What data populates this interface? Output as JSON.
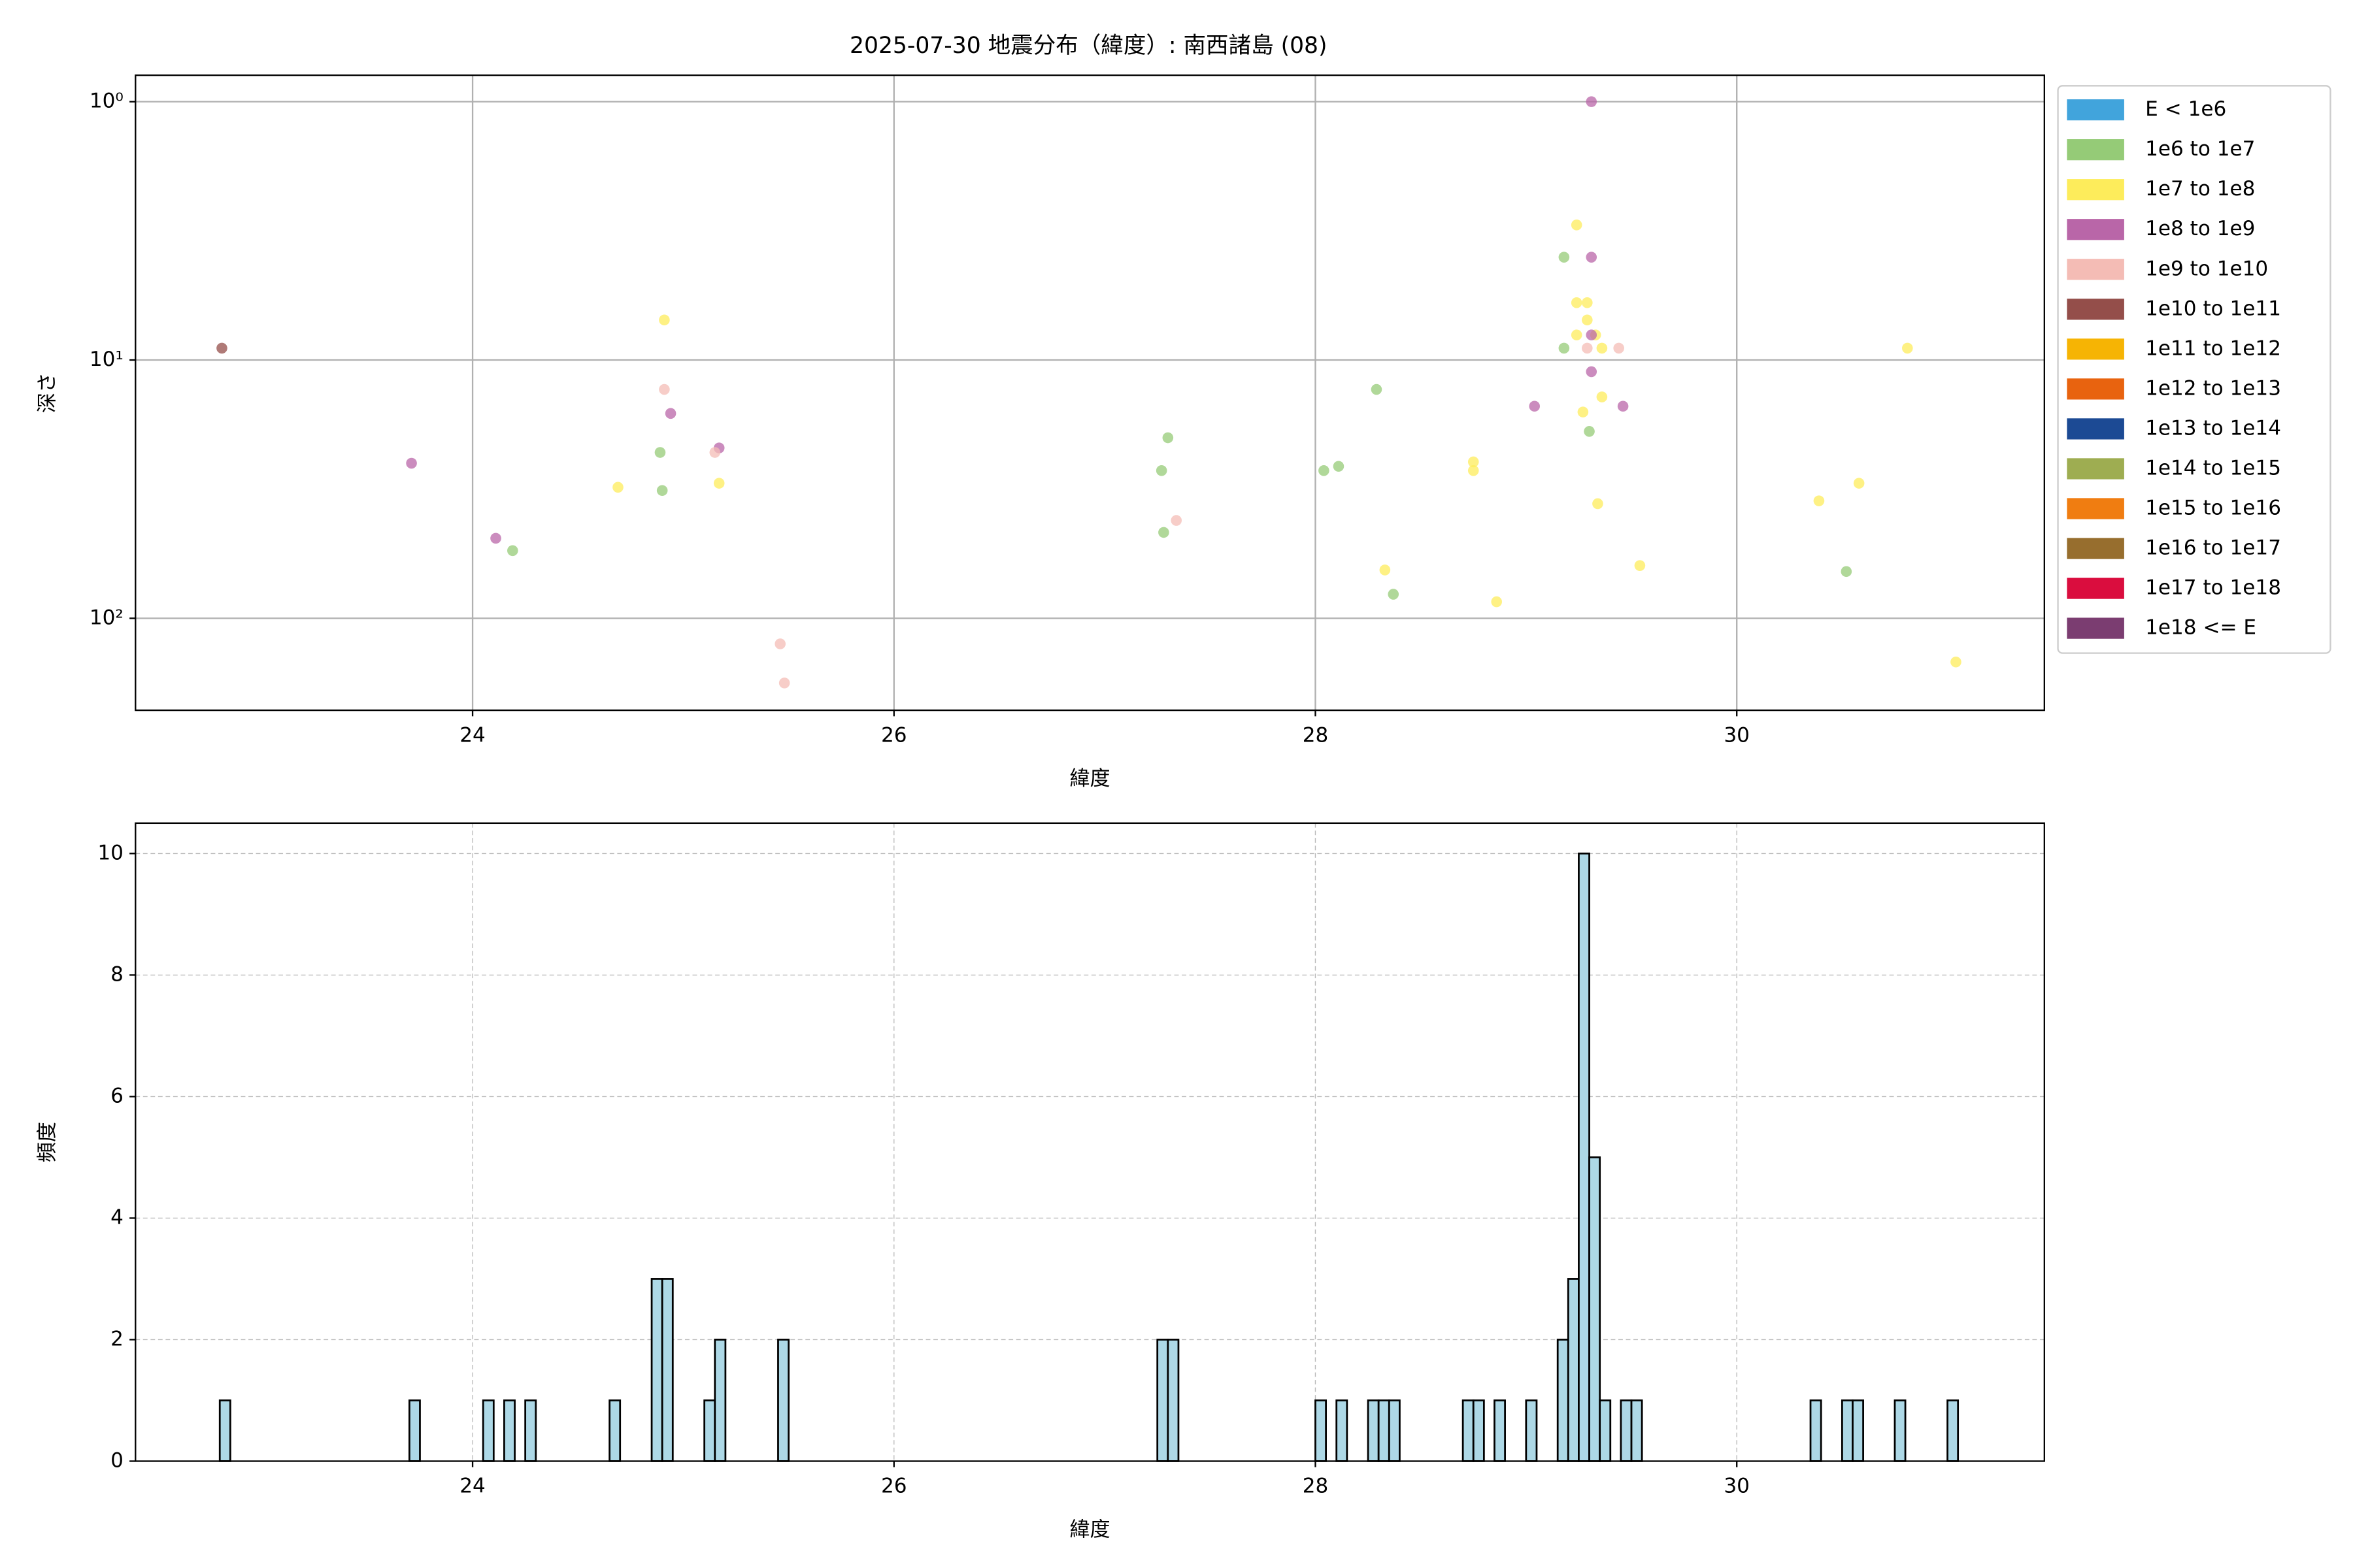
{
  "chart_data": [
    {
      "type": "scatter",
      "title": "2025-07-30 地震分布（緯度）: 南西諸島 (08)",
      "xlabel": "緯度",
      "ylabel": "深さ",
      "xlim": [
        22.4,
        31.46
      ],
      "ylim": [
        227,
        0.79
      ],
      "log_y": true,
      "xticks": [
        24,
        26,
        28,
        30
      ],
      "yticks": [
        {
          "value": 1,
          "label": "10⁰"
        },
        {
          "value": 10,
          "label": "10¹"
        },
        {
          "value": 100,
          "label": "10²"
        }
      ],
      "grid": true,
      "legend": "outside-right",
      "series": [
        {
          "name": "E < 1e6",
          "color": "#41a4dc",
          "x": [],
          "values": []
        },
        {
          "name": "1e6 to 1e7",
          "color": "#95cb77",
          "x": [
            24.19,
            24.89,
            24.9,
            27.3,
            27.27,
            27.28,
            28.04,
            28.11,
            28.29,
            28.37,
            29.18,
            29.18,
            29.3,
            30.52
          ],
          "values": [
            54.7,
            22.8,
            32,
            20,
            26.8,
            46.5,
            26.8,
            25.8,
            13,
            80.7,
            4,
            9,
            18.9,
            65.9
          ]
        },
        {
          "name": "1e7 to 1e8",
          "color": "#fdec5b",
          "x": [
            24.91,
            24.69,
            25.17,
            29.24,
            29.24,
            29.29,
            29.29,
            29.24,
            29.33,
            29.36,
            29.27,
            29.36,
            29.34,
            28.75,
            28.75,
            28.33,
            28.86,
            29.54,
            30.39,
            30.58,
            30.81,
            31.04
          ],
          "values": [
            7,
            31.1,
            30,
            3,
            6,
            6,
            7,
            8,
            8,
            9,
            15.9,
            13.9,
            36,
            24.8,
            26.8,
            65,
            86.3,
            62.5,
            35.1,
            30,
            9,
            147.6
          ]
        },
        {
          "name": "1e8 to 1e9",
          "color": "#b966a8",
          "x": [
            23.71,
            24.11,
            24.94,
            25.17,
            29.31,
            29.31,
            29.31,
            29.04,
            29.46,
            29.31
          ],
          "values": [
            25.1,
            49,
            16.1,
            21.9,
            1,
            4,
            11.1,
            15.1,
            15.1,
            8
          ]
        },
        {
          "name": "1e9 to 1e10",
          "color": "#f4bcb5",
          "x": [
            24.91,
            25.15,
            25.46,
            25.48,
            27.34,
            29.44,
            29.29
          ],
          "values": [
            13,
            22.8,
            125.6,
            178,
            41.8,
            9,
            9
          ]
        },
        {
          "name": "1e10 to 1e11",
          "color": "#944e4a",
          "x": [
            22.81
          ],
          "values": [
            9
          ]
        },
        {
          "name": "1e11 to 1e12",
          "color": "#f6b404",
          "x": [],
          "values": []
        },
        {
          "name": "1e12 to 1e13",
          "color": "#e8630f",
          "x": [],
          "values": []
        },
        {
          "name": "1e13 to 1e14",
          "color": "#1c4a94",
          "x": [],
          "values": []
        },
        {
          "name": "1e14 to 1e15",
          "color": "#9ead51",
          "x": [],
          "values": []
        },
        {
          "name": "1e15 to 1e16",
          "color": "#f07d11",
          "x": [],
          "values": []
        },
        {
          "name": "1e16 to 1e17",
          "color": "#976e2e",
          "x": [],
          "values": []
        },
        {
          "name": "1e17 to 1e18",
          "color": "#da0d3e",
          "x": [],
          "values": []
        },
        {
          "name": "1e18 <= E",
          "color": "#7b3d71",
          "x": [],
          "values": []
        }
      ]
    },
    {
      "type": "histogram",
      "xlabel": "緯度",
      "ylabel": "頻度",
      "xlim": [
        22.4,
        31.46
      ],
      "ylim": [
        0,
        10.5
      ],
      "xticks": [
        24,
        26,
        28,
        30
      ],
      "yticks": [
        0,
        2,
        4,
        6,
        8,
        10
      ],
      "grid": true,
      "color": "#add8e6",
      "edgecolor": "#000000",
      "bins": [
        22.8,
        22.85,
        22.9,
        22.95,
        23,
        23.05,
        23.1,
        23.15,
        23.2,
        23.25,
        23.3,
        23.35,
        23.4,
        23.45,
        23.5,
        23.55,
        23.6,
        23.65,
        23.7,
        23.75,
        23.8,
        23.85,
        23.9,
        23.95,
        24,
        24.05,
        24.1,
        24.15,
        24.2,
        24.25,
        24.3,
        24.35,
        24.4,
        24.45,
        24.5,
        24.55,
        24.6,
        24.65,
        24.7,
        24.75,
        24.8,
        24.85,
        24.9,
        24.95,
        25,
        25.05,
        25.1,
        25.15,
        25.2,
        25.25,
        25.3,
        25.35,
        25.4,
        25.45,
        25.5,
        25.55,
        25.6,
        25.65,
        25.7,
        25.75,
        25.8,
        25.85,
        25.9,
        25.95,
        26,
        26.05,
        26.1,
        26.15,
        26.2,
        26.25,
        26.3,
        26.35,
        26.4,
        26.45,
        26.5,
        26.55,
        26.6,
        26.65,
        26.7,
        26.75,
        26.8,
        26.85,
        26.9,
        26.95,
        27,
        27.05,
        27.1,
        27.15,
        27.2,
        27.25,
        27.3,
        27.35,
        27.4,
        27.45,
        27.5,
        27.55,
        27.6,
        27.65,
        27.7,
        27.75,
        27.8,
        27.85,
        27.9,
        27.95,
        28,
        28.05,
        28.1,
        28.15,
        28.2,
        28.25,
        28.3,
        28.35,
        28.4,
        28.45,
        28.5,
        28.55,
        28.6,
        28.65,
        28.7,
        28.75,
        28.8,
        28.85,
        28.9,
        28.95,
        29,
        29.05,
        29.1,
        29.15,
        29.2,
        29.25,
        29.3,
        29.35,
        29.4,
        29.45,
        29.5,
        29.55,
        29.6,
        29.65,
        29.7,
        29.75,
        29.8,
        29.85,
        29.9,
        29.95,
        30,
        30.05,
        30.1,
        30.15,
        30.2,
        30.25,
        30.3,
        30.35,
        30.4,
        30.45,
        30.5,
        30.55,
        30.6,
        30.65,
        30.7,
        30.75,
        30.8,
        30.85,
        30.9,
        30.95,
        31,
        31.05
      ],
      "values": [
        1,
        0,
        0,
        0,
        0,
        0,
        0,
        0,
        0,
        0,
        0,
        0,
        0,
        0,
        0,
        0,
        0,
        0,
        1,
        0,
        0,
        0,
        0,
        0,
        0,
        1,
        0,
        1,
        0,
        1,
        0,
        0,
        0,
        0,
        0,
        0,
        0,
        1,
        0,
        0,
        0,
        3,
        3,
        0,
        0,
        0,
        1,
        2,
        0,
        0,
        0,
        0,
        0,
        2,
        0,
        0,
        0,
        0,
        0,
        0,
        0,
        0,
        0,
        0,
        0,
        0,
        0,
        0,
        0,
        0,
        0,
        0,
        0,
        0,
        0,
        0,
        0,
        0,
        0,
        0,
        0,
        0,
        0,
        0,
        0,
        0,
        0,
        0,
        0,
        2,
        2,
        0,
        0,
        0,
        0,
        0,
        0,
        0,
        0,
        0,
        0,
        0,
        0,
        0,
        1,
        0,
        1,
        0,
        0,
        1,
        1,
        1,
        0,
        0,
        0,
        0,
        0,
        0,
        1,
        1,
        0,
        1,
        0,
        0,
        1,
        0,
        0,
        2,
        3,
        10,
        5,
        1,
        0,
        1,
        1,
        0,
        0,
        0,
        0,
        0,
        0,
        0,
        0,
        0,
        0,
        0,
        0,
        0,
        0,
        0,
        0,
        1,
        0,
        0,
        1,
        1,
        0,
        0,
        0,
        1,
        0,
        0,
        0,
        0,
        1
      ]
    }
  ]
}
